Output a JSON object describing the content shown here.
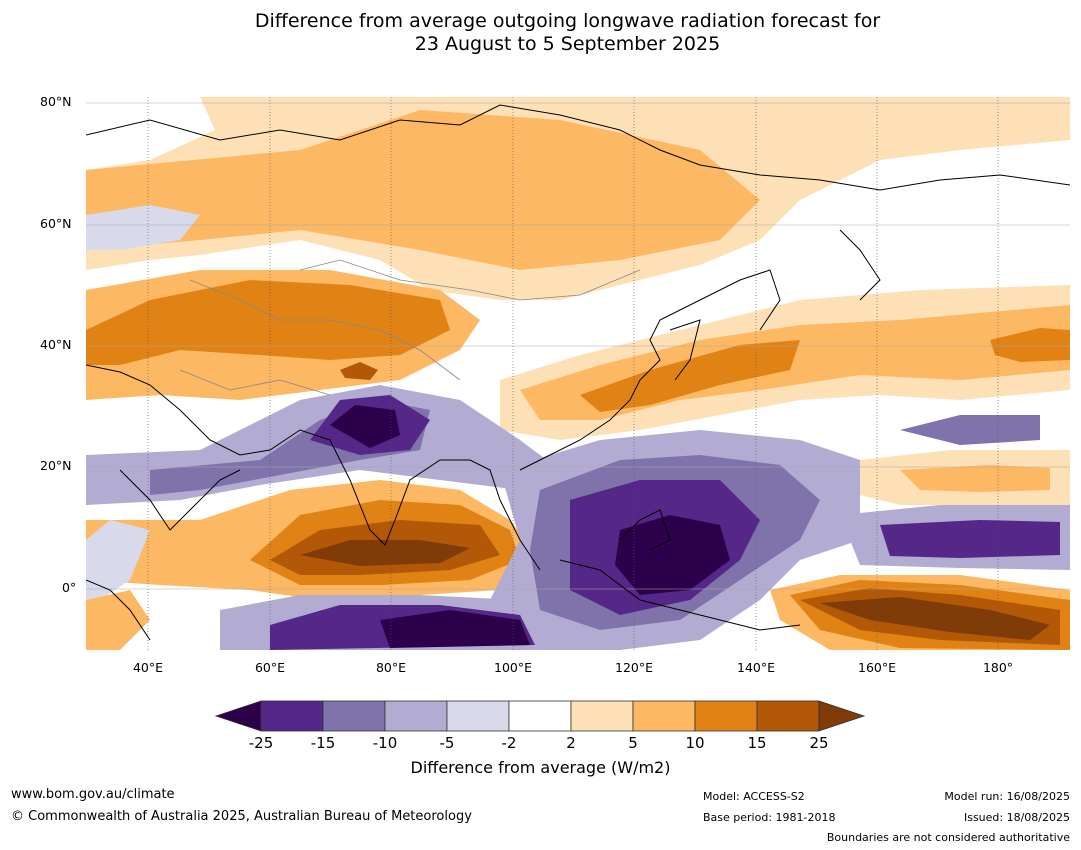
{
  "title": {
    "line1": "Difference from average outgoing longwave radiation forecast for",
    "line2": "23 August to 5 September 2025"
  },
  "map": {
    "lat_labels": [
      "80°N",
      "60°N",
      "40°N",
      "20°N",
      "0°"
    ],
    "lon_labels": [
      "40°E",
      "60°E",
      "80°E",
      "100°E",
      "120°E",
      "140°E",
      "160°E",
      "180°"
    ],
    "anomaly_palette": {
      "below_-25": "#2d004b",
      "-25_to_-15": "#542788",
      "-15_to_-10": "#8073ac",
      "-10_to_-5": "#b2abd2",
      "-5_to_-2": "#d8daeb",
      "-2_to_2": "#ffffff",
      "2_to_5": "#fee0b6",
      "5_to_10": "#fdb863",
      "10_to_15": "#e08214",
      "15_to_25": "#b35806",
      "above_25": "#7f3b08"
    }
  },
  "colorbar": {
    "ticks": [
      "-25",
      "-15",
      "-10",
      "-5",
      "-2",
      "2",
      "5",
      "10",
      "15",
      "25"
    ],
    "label": "Difference from average (W/m2)"
  },
  "footer": {
    "website": "www.bom.gov.au/climate",
    "copyright": "© Commonwealth of Australia 2025, Australian Bureau of Meteorology",
    "model": "Model: ACCESS-S2",
    "base_period": "Base period: 1981-2018",
    "model_run": "Model run: 16/08/2025",
    "issued": "Issued: 18/08/2025",
    "disclaimer": "Boundaries are not considered authoritative"
  }
}
